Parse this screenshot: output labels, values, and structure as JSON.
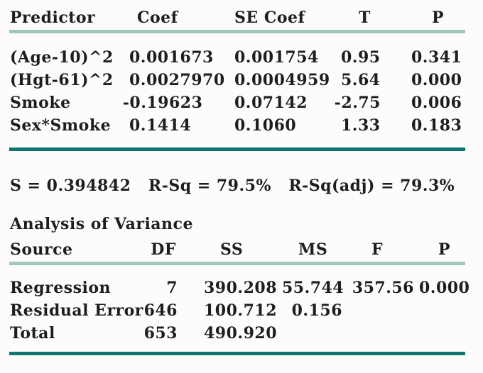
{
  "colors": {
    "rule_light": "#a0c7ba",
    "rule_dark": "#0e756f",
    "text": "#1e1e1e",
    "background": "#fdfcfa"
  },
  "coefficients_table": {
    "headers": {
      "predictor": "Predictor",
      "coef": "Coef",
      "se_coef": "SE Coef",
      "t": "T",
      "p": "P"
    },
    "rows": [
      {
        "predictor": "(Age-10)^2",
        "coef": "0.001673",
        "se_coef": "0.001754",
        "t": "0.95",
        "p": "0.341"
      },
      {
        "predictor": "(Hgt-61)^2",
        "coef": "0.0027970",
        "se_coef": "0.0004959",
        "t": "5.64",
        "p": "0.000"
      },
      {
        "predictor": "Smoke",
        "coef": "-0.19623",
        "se_coef": "0.07142",
        "t": "-2.75",
        "p": "0.006"
      },
      {
        "predictor": "Sex*Smoke",
        "coef": "0.1414",
        "se_coef": "0.1060",
        "t": "1.33",
        "p": "0.183"
      }
    ]
  },
  "model_summary": {
    "s": "0.394842",
    "r_sq": "79.5%",
    "r_sq_adj": "79.3%",
    "display_text": "S = 0.394842   R-Sq = 79.5%   R-Sq(adj) = 79.3%"
  },
  "anova": {
    "title": "Analysis of Variance",
    "headers": {
      "source": "Source",
      "df": "DF",
      "ss": "SS",
      "ms": "MS",
      "f": "F",
      "p": "P"
    },
    "rows": [
      {
        "source": "Regression",
        "df": "7",
        "ss": "390.208",
        "ms": "55.744",
        "f": "357.56",
        "p": "0.000"
      },
      {
        "source": "Residual Error",
        "df": "646",
        "ss": "100.712",
        "ms": "0.156",
        "f": "",
        "p": ""
      },
      {
        "source": "Total",
        "df": "653",
        "ss": "490.920",
        "ms": "",
        "f": "",
        "p": ""
      }
    ]
  }
}
